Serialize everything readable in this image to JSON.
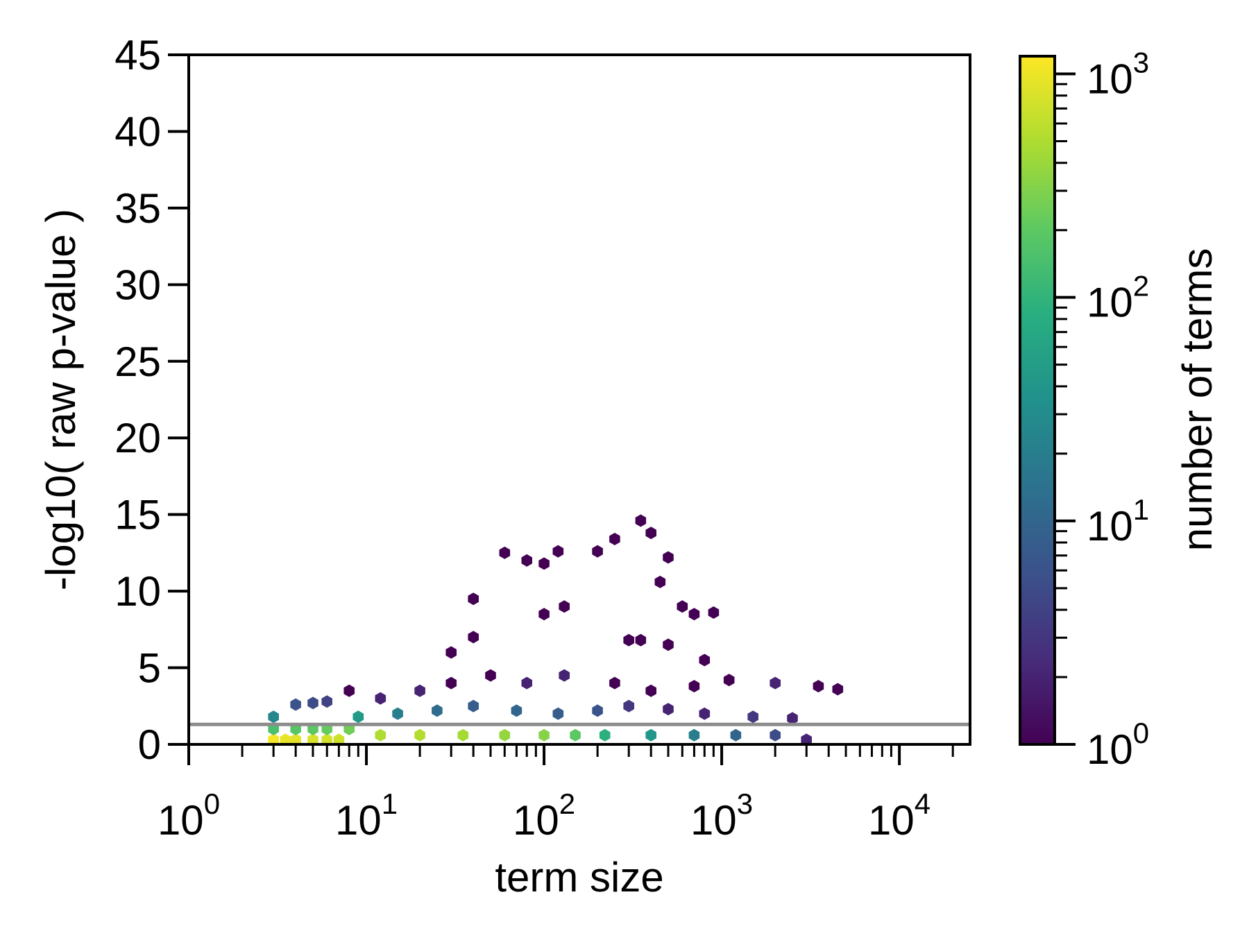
{
  "chart_data": {
    "type": "hexbin",
    "xlabel": "term size",
    "ylabel": "-log10( raw p-value )",
    "xscale": "log",
    "xlim": [
      1,
      25000
    ],
    "ylim": [
      0,
      45
    ],
    "x_ticks": [
      {
        "base": "10",
        "exp": "0",
        "value": 1
      },
      {
        "base": "10",
        "exp": "1",
        "value": 10
      },
      {
        "base": "10",
        "exp": "2",
        "value": 100
      },
      {
        "base": "10",
        "exp": "3",
        "value": 1000
      },
      {
        "base": "10",
        "exp": "4",
        "value": 10000
      }
    ],
    "y_ticks": [
      "0",
      "5",
      "10",
      "15",
      "20",
      "25",
      "30",
      "35",
      "40",
      "45"
    ],
    "threshold_line": {
      "y": 1.3,
      "color": "#8c8c8c"
    },
    "colorbar": {
      "label": "number of terms",
      "scale": "log",
      "range": [
        1,
        1200
      ],
      "colormap": "viridis",
      "ticks": [
        {
          "base": "10",
          "exp": "0",
          "value": 1
        },
        {
          "base": "10",
          "exp": "1",
          "value": 10
        },
        {
          "base": "10",
          "exp": "2",
          "value": 100
        },
        {
          "base": "10",
          "exp": "3",
          "value": 1000
        }
      ]
    },
    "bins": [
      [
        3,
        0.3,
        1100
      ],
      [
        3.5,
        0.3,
        950
      ],
      [
        4,
        0.3,
        900
      ],
      [
        5,
        0.3,
        800
      ],
      [
        6,
        0.3,
        750
      ],
      [
        7,
        0.3,
        700
      ],
      [
        3,
        1.0,
        150
      ],
      [
        4,
        1.0,
        180
      ],
      [
        5,
        1.0,
        200
      ],
      [
        6,
        1.0,
        220
      ],
      [
        8,
        1.0,
        250
      ],
      [
        12,
        0.6,
        500
      ],
      [
        20,
        0.6,
        520
      ],
      [
        35,
        0.6,
        450
      ],
      [
        60,
        0.6,
        380
      ],
      [
        100,
        0.6,
        320
      ],
      [
        150,
        0.6,
        200
      ],
      [
        220,
        0.6,
        90
      ],
      [
        400,
        0.6,
        40
      ],
      [
        700,
        0.6,
        20
      ],
      [
        1200,
        0.6,
        10
      ],
      [
        2000,
        0.6,
        5
      ],
      [
        3000,
        0.3,
        2
      ],
      [
        3,
        1.8,
        25
      ],
      [
        4,
        2.6,
        6
      ],
      [
        5,
        2.7,
        5
      ],
      [
        6,
        2.8,
        4
      ],
      [
        8,
        3.5,
        1
      ],
      [
        9,
        1.8,
        45
      ],
      [
        15,
        2.0,
        20
      ],
      [
        25,
        2.2,
        12
      ],
      [
        40,
        2.5,
        8
      ],
      [
        70,
        2.2,
        10
      ],
      [
        120,
        2.0,
        8
      ],
      [
        200,
        2.2,
        6
      ],
      [
        300,
        2.5,
        3
      ],
      [
        500,
        2.3,
        2
      ],
      [
        800,
        2.0,
        2
      ],
      [
        1500,
        1.8,
        3
      ],
      [
        2500,
        1.7,
        2
      ],
      [
        12,
        3.0,
        2
      ],
      [
        20,
        3.5,
        2
      ],
      [
        30,
        4.0,
        1
      ],
      [
        50,
        4.5,
        1
      ],
      [
        80,
        4.0,
        2
      ],
      [
        130,
        4.5,
        2
      ],
      [
        250,
        4.0,
        1
      ],
      [
        400,
        3.5,
        1
      ],
      [
        700,
        3.8,
        1
      ],
      [
        1100,
        4.2,
        1
      ],
      [
        2000,
        4.0,
        2
      ],
      [
        3500,
        3.8,
        1
      ],
      [
        30,
        6.0,
        1
      ],
      [
        40,
        7.0,
        1
      ],
      [
        60,
        12.5,
        1
      ],
      [
        80,
        12.0,
        1
      ],
      [
        100,
        11.8,
        1
      ],
      [
        120,
        12.6,
        1
      ],
      [
        40,
        9.5,
        1
      ],
      [
        100,
        8.5,
        1
      ],
      [
        130,
        9.0,
        1
      ],
      [
        200,
        12.6,
        1
      ],
      [
        250,
        13.4,
        1
      ],
      [
        350,
        14.6,
        1
      ],
      [
        400,
        13.8,
        1
      ],
      [
        500,
        12.2,
        1
      ],
      [
        450,
        10.6,
        1
      ],
      [
        600,
        9.0,
        1
      ],
      [
        700,
        8.5,
        1
      ],
      [
        900,
        8.6,
        1
      ],
      [
        300,
        6.8,
        1
      ],
      [
        350,
        6.8,
        1
      ],
      [
        500,
        6.5,
        1
      ],
      [
        800,
        5.5,
        1
      ],
      [
        4500,
        3.6,
        1
      ]
    ]
  }
}
